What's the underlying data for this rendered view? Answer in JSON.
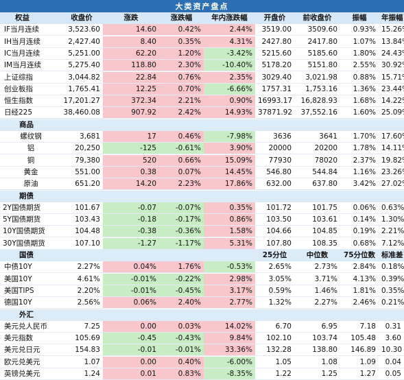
{
  "title": "大类资产盘点",
  "headers": [
    "权益",
    "收盘价",
    "涨跌",
    "涨跌幅",
    "年内涨跌幅",
    "开盘价",
    "前收盘价",
    "振幅",
    "年振幅"
  ],
  "equities": [
    {
      "name": "IF当月连续",
      "close": "3,523.60",
      "chg": "14.60",
      "pct": "0.42%",
      "ytd": "2.44%",
      "open": "3519.00",
      "prev": "3509.60",
      "amp": "0.93%",
      "yamp": "15.26%",
      "c_chg": "red",
      "c_pct": "red",
      "c_ytd": "red"
    },
    {
      "name": "IH当月连续",
      "close": "2,427.40",
      "chg": "8.40",
      "pct": "0.35%",
      "ytd": "4.31%",
      "open": "2427.80",
      "prev": "2417.80",
      "amp": "1.07%",
      "yamp": "13.84%",
      "c_chg": "red",
      "c_pct": "red",
      "c_ytd": "red"
    },
    {
      "name": "IC当月连续",
      "close": "5,251.00",
      "chg": "62.20",
      "pct": "1.20%",
      "ytd": "-3.42%",
      "open": "5215.60",
      "prev": "5185.60",
      "amp": "1.80%",
      "yamp": "24.43%",
      "c_chg": "red",
      "c_pct": "red",
      "c_ytd": "green"
    },
    {
      "name": "IM当月连续",
      "close": "5,275.40",
      "chg": "118.80",
      "pct": "2.30%",
      "ytd": "-10.40%",
      "open": "5178.20",
      "prev": "5151.80",
      "amp": "2.55%",
      "yamp": "30.92%",
      "c_chg": "red",
      "c_pct": "red",
      "c_ytd": "green"
    },
    {
      "name": "上证综指",
      "close": "3,044.82",
      "chg": "22.84",
      "pct": "0.76%",
      "ytd": "2.35%",
      "open": "3029.40",
      "prev": "3,021.98",
      "amp": "0.88%",
      "yamp": "15.71%",
      "c_chg": "red",
      "c_pct": "red",
      "c_ytd": "red"
    },
    {
      "name": "创业板指",
      "close": "1,765.41",
      "chg": "12.25",
      "pct": "0.70%",
      "ytd": "-6.66%",
      "open": "1757.31",
      "prev": "1,753.16",
      "amp": "1.36%",
      "yamp": "23.44%",
      "c_chg": "red",
      "c_pct": "red",
      "c_ytd": "green"
    },
    {
      "name": "恒生指数",
      "close": "17,201.27",
      "chg": "372.34",
      "pct": "2.21%",
      "ytd": "0.90%",
      "open": "16993.17",
      "prev": "16,828.93",
      "amp": "1.68%",
      "yamp": "14.22%",
      "c_chg": "red",
      "c_pct": "red",
      "c_ytd": "red"
    },
    {
      "name": "日经225",
      "close": "38,460.08",
      "chg": "907.92",
      "pct": "2.42%",
      "ytd": "14.93%",
      "open": "37871.92",
      "prev": "37,552.16",
      "amp": "1.60%",
      "yamp": "25.09%",
      "c_chg": "red",
      "c_pct": "red",
      "c_ytd": "red"
    }
  ],
  "commodities_label": "商品",
  "commodities": [
    {
      "name": "螺纹钢",
      "close": "3,681",
      "chg": "17",
      "pct": "0.46%",
      "ytd": "-7.98%",
      "open": "3636",
      "prev": "3641",
      "amp": "1.70%",
      "yamp": "17.60%",
      "c_chg": "red",
      "c_pct": "red",
      "c_ytd": "green"
    },
    {
      "name": "铝",
      "close": "20,250",
      "chg": "-125",
      "pct": "-0.61%",
      "ytd": "3.90%",
      "open": "20000",
      "prev": "20200",
      "amp": "1.78%",
      "yamp": "14.11%",
      "c_chg": "green",
      "c_pct": "green",
      "c_ytd": "red"
    },
    {
      "name": "铜",
      "close": "79,380",
      "chg": "520",
      "pct": "0.66%",
      "ytd": "15.09%",
      "open": "77930",
      "prev": "78020",
      "amp": "2.37%",
      "yamp": "19.82%",
      "c_chg": "red",
      "c_pct": "red",
      "c_ytd": "red"
    },
    {
      "name": "黄金",
      "close": "551.00",
      "chg": "0.38",
      "pct": "0.07%",
      "ytd": "14.45%",
      "open": "546.80",
      "prev": "544.84",
      "amp": "1.16%",
      "yamp": "23.26%",
      "c_chg": "red",
      "c_pct": "red",
      "c_ytd": "red"
    },
    {
      "name": "原油",
      "close": "651.20",
      "chg": "14.20",
      "pct": "2.23%",
      "ytd": "17.86%",
      "open": "632.00",
      "prev": "637.80",
      "amp": "3.42%",
      "yamp": "27.02%",
      "c_chg": "red",
      "c_pct": "red",
      "c_ytd": "red"
    }
  ],
  "futures_label": "期债",
  "futures": [
    {
      "name": "2Y国债期货",
      "close": "101.67",
      "chg": "-0.07",
      "pct": "-0.07%",
      "ytd": "0.35%",
      "open": "101.72",
      "prev": "101.75",
      "amp": "0.06%",
      "yamp": "0.63%",
      "c_chg": "green",
      "c_pct": "green",
      "c_ytd": "red"
    },
    {
      "name": "5Y国债期货",
      "close": "103.43",
      "chg": "-0.18",
      "pct": "-0.17%",
      "ytd": "0.86%",
      "open": "103.50",
      "prev": "103.61",
      "amp": "0.14%",
      "yamp": "1.30%",
      "c_chg": "green",
      "c_pct": "green",
      "c_ytd": "red"
    },
    {
      "name": "10Y国债期货",
      "close": "104.48",
      "chg": "-0.38",
      "pct": "-0.36%",
      "ytd": "1.58%",
      "open": "104.66",
      "prev": "104.85",
      "amp": "0.19%",
      "yamp": "2.21%",
      "c_chg": "green",
      "c_pct": "green",
      "c_ytd": "red"
    },
    {
      "name": "30Y国债期货",
      "close": "107.10",
      "chg": "-1.27",
      "pct": "-1.17%",
      "ytd": "5.31%",
      "open": "107.80",
      "prev": "108.35",
      "amp": "0.68%",
      "yamp": "7.12%",
      "c_chg": "green",
      "c_pct": "green",
      "c_ytd": "red"
    }
  ],
  "bonds_label": "国债",
  "bonds_headers": [
    "25分位",
    "中位数",
    "75分位数",
    "标准差"
  ],
  "bonds": [
    {
      "name": "中债10Y",
      "close": "2.27%",
      "chg": "0.04%",
      "pct": "1.76%",
      "ytd": "-0.53%",
      "open": "2.65%",
      "prev": "2.73%",
      "amp": "2.84%",
      "yamp": "0.18%",
      "c_chg": "red",
      "c_pct": "red",
      "c_ytd": "green"
    },
    {
      "name": "美国10Y",
      "close": "4.61%",
      "chg": "-0.01%",
      "pct": "-0.22%",
      "ytd": "2.98%",
      "open": "3.05%",
      "prev": "3.71%",
      "amp": "4.13%",
      "yamp": "0.39%",
      "c_chg": "green",
      "c_pct": "green",
      "c_ytd": "red"
    },
    {
      "name": "美国TIPS",
      "close": "2.20%",
      "chg": "-0.01%",
      "pct": "-0.45%",
      "ytd": "3.17%",
      "open": "0.59%",
      "prev": "1.46%",
      "amp": "1.81%",
      "yamp": "0.35%",
      "c_chg": "green",
      "c_pct": "green",
      "c_ytd": "red"
    },
    {
      "name": "德国10Y",
      "close": "2.56%",
      "chg": "0.06%",
      "pct": "2.40%",
      "ytd": "2.77%",
      "open": "1.32%",
      "prev": "2.27%",
      "amp": "2.46%",
      "yamp": "0.21%",
      "c_chg": "red",
      "c_pct": "red",
      "c_ytd": "red"
    }
  ],
  "fx_label": "外汇",
  "fx": [
    {
      "name": "美元兑人民币",
      "close": "7.25",
      "chg": "0.00",
      "pct": "0.03%",
      "ytd": "14.02%",
      "open": "6.70",
      "prev": "6.95",
      "amp": "7.18",
      "yamp": "0.31",
      "c_chg": "red",
      "c_pct": "red",
      "c_ytd": "red"
    },
    {
      "name": "美元指数",
      "close": "105.69",
      "chg": "-0.45",
      "pct": "-0.43%",
      "ytd": "9.84%",
      "open": "102.10",
      "prev": "103.74",
      "amp": "105.48",
      "yamp": "3.60",
      "c_chg": "green",
      "c_pct": "green",
      "c_ytd": "red"
    },
    {
      "name": "美元兑日元",
      "close": "154.83",
      "chg": "-0.01",
      "pct": "-0.01%",
      "ytd": "33.36%",
      "open": "132.28",
      "prev": "138.80",
      "amp": "146.89",
      "yamp": "10.30",
      "c_chg": "green",
      "c_pct": "green",
      "c_ytd": "red"
    },
    {
      "name": "欧元兑美元",
      "close": "1.07",
      "chg": "0.00",
      "pct": "0.40%",
      "ytd": "-6.00%",
      "open": "1.05",
      "prev": "1.08",
      "amp": "1.09",
      "yamp": "0.04",
      "c_chg": "red",
      "c_pct": "red",
      "c_ytd": "green"
    },
    {
      "name": "英镑兑美元",
      "close": "1.24",
      "chg": "0.01",
      "pct": "0.83%",
      "ytd": "-8.35%",
      "open": "1.22",
      "prev": "1.25",
      "amp": "1.27",
      "yamp": "0.05",
      "c_chg": "red",
      "c_pct": "red",
      "c_ytd": "green"
    }
  ]
}
